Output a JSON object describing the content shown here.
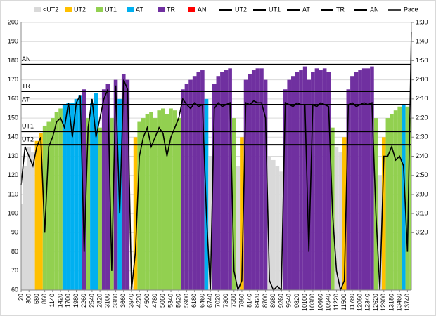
{
  "chart_data": {
    "type": "area",
    "xlim": [
      20,
      13880
    ],
    "x": [
      20,
      160,
      300,
      440,
      580,
      720,
      860,
      1000,
      1140,
      1280,
      1420,
      1560,
      1700,
      1840,
      1980,
      2120,
      2260,
      2400,
      2540,
      2680,
      2820,
      2960,
      3100,
      3240,
      3380,
      3520,
      3660,
      3800,
      3940,
      4080,
      4220,
      4360,
      4500,
      4640,
      4780,
      4920,
      5060,
      5200,
      5340,
      5480,
      5620,
      5760,
      5900,
      6040,
      6180,
      6320,
      6460,
      6600,
      6740,
      6880,
      7020,
      7160,
      7300,
      7440,
      7580,
      7720,
      7860,
      8000,
      8140,
      8280,
      8420,
      8560,
      8700,
      8840,
      8980,
      9120,
      9260,
      9400,
      9540,
      9680,
      9820,
      9960,
      10100,
      10240,
      10380,
      10520,
      10660,
      10800,
      10940,
      11080,
      11220,
      11360,
      11500,
      11640,
      11780,
      11920,
      12060,
      12200,
      12340,
      12480,
      12620,
      12760,
      12900,
      13040,
      13180,
      13320,
      13460,
      13600,
      13740,
      13880
    ],
    "xticks": [
      20,
      300,
      580,
      860,
      1140,
      1420,
      1700,
      1980,
      2260,
      2540,
      2820,
      3100,
      3380,
      3660,
      3940,
      4220,
      4500,
      4780,
      5060,
      5340,
      5620,
      5900,
      6180,
      6460,
      6740,
      7020,
      7300,
      7580,
      7860,
      8140,
      8420,
      8700,
      8980,
      9260,
      9540,
      9820,
      10100,
      10380,
      10660,
      10940,
      11220,
      11500,
      11780,
      12060,
      12340,
      12620,
      12900,
      13180,
      13460,
      13740
    ],
    "ylim": [
      60,
      200
    ],
    "yticks": [
      60,
      70,
      80,
      90,
      100,
      110,
      120,
      130,
      140,
      150,
      160,
      170,
      180,
      190,
      200
    ],
    "y2lim": [
      230,
      90
    ],
    "y2ticks": [
      {
        "value": 90,
        "label": "1:30"
      },
      {
        "value": 100,
        "label": "1:40"
      },
      {
        "value": 110,
        "label": "1:50"
      },
      {
        "value": 120,
        "label": "2:00"
      },
      {
        "value": 130,
        "label": "2:10"
      },
      {
        "value": 140,
        "label": "2:20"
      },
      {
        "value": 150,
        "label": "2:30"
      },
      {
        "value": 160,
        "label": "2:40"
      },
      {
        "value": 170,
        "label": "2:50"
      },
      {
        "value": 180,
        "label": "3:00"
      },
      {
        "value": 190,
        "label": "3:10"
      },
      {
        "value": 200,
        "label": "3:20"
      }
    ],
    "grid": true,
    "zones": [
      {
        "name": "<UT2",
        "color": "#d9d9d9"
      },
      {
        "name": "UT2",
        "color": "#ffc000"
      },
      {
        "name": "UT1",
        "color": "#92d050"
      },
      {
        "name": "AT",
        "color": "#00b0f0"
      },
      {
        "name": "TR",
        "color": "#7030a0"
      },
      {
        "name": "AN",
        "color": "#ff0000"
      }
    ],
    "thresholds": [
      {
        "name": "UT2",
        "value": 136
      },
      {
        "name": "UT1",
        "value": 143
      },
      {
        "name": "AT",
        "value": 157
      },
      {
        "name": "TR",
        "value": 164
      },
      {
        "name": "AN",
        "value": 178
      }
    ],
    "heart_rate": {
      "values": [
        105,
        125,
        135,
        132,
        138,
        142,
        146,
        148,
        150,
        153,
        155,
        157,
        158,
        158,
        160,
        162,
        165,
        150,
        158,
        163,
        145,
        165,
        168,
        150,
        170,
        160,
        173,
        170,
        62,
        140,
        148,
        150,
        152,
        153,
        150,
        154,
        155,
        152,
        155,
        154,
        150,
        165,
        168,
        170,
        172,
        174,
        175,
        160,
        130,
        168,
        172,
        174,
        175,
        176,
        150,
        125,
        140,
        170,
        173,
        175,
        176,
        176,
        170,
        130,
        128,
        125,
        122,
        165,
        170,
        172,
        174,
        175,
        177,
        170,
        174,
        176,
        175,
        176,
        174,
        145,
        135,
        132,
        140,
        165,
        172,
        174,
        175,
        176,
        176,
        177,
        150,
        120,
        140,
        150,
        152,
        154,
        156,
        157,
        156,
        150
      ]
    },
    "pace": {
      "name": "Pace",
      "axis": "y2",
      "color": "#000000",
      "values": [
        175,
        155,
        160,
        165,
        155,
        150,
        200,
        155,
        150,
        142,
        140,
        145,
        132,
        150,
        132,
        128,
        210,
        145,
        130,
        150,
        140,
        130,
        125,
        220,
        123,
        190,
        120,
        125,
        230,
        210,
        160,
        150,
        145,
        155,
        150,
        145,
        148,
        160,
        150,
        145,
        140,
        130,
        133,
        135,
        132,
        134,
        133,
        190,
        230,
        135,
        132,
        134,
        133,
        132,
        220,
        230,
        225,
        132,
        133,
        131,
        132,
        132,
        140,
        225,
        230,
        228,
        230,
        132,
        133,
        134,
        132,
        133,
        133,
        210,
        133,
        134,
        132,
        133,
        134,
        190,
        220,
        230,
        225,
        133,
        132,
        134,
        133,
        132,
        133,
        132,
        190,
        230,
        160,
        160,
        155,
        162,
        160,
        165,
        210,
        95
      ]
    }
  }
}
